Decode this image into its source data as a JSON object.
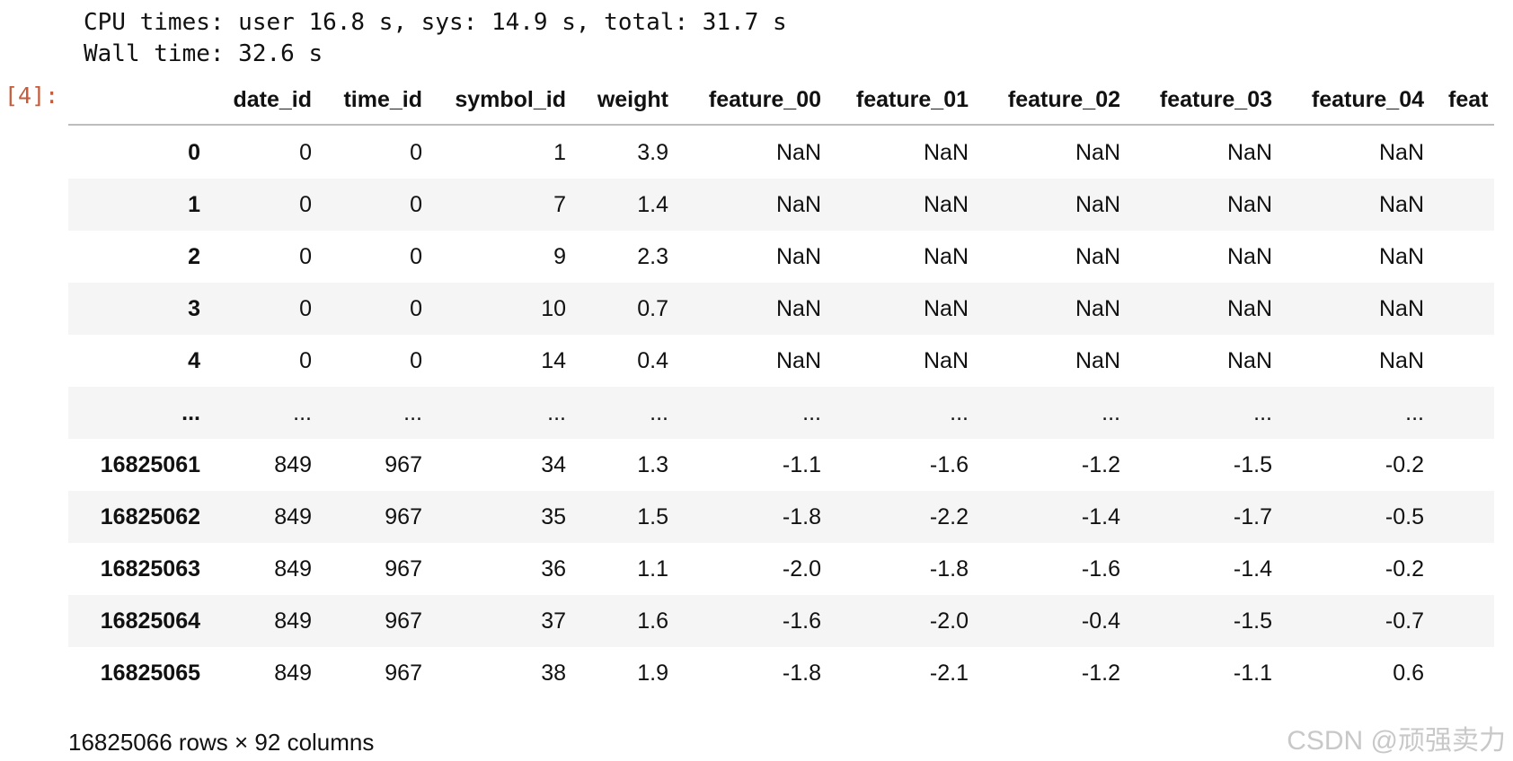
{
  "output_lines": [
    "CPU times: user 16.8 s, sys: 14.9 s, total: 31.7 s",
    "Wall time: 32.6 s"
  ],
  "prompt": "[4]:",
  "table": {
    "columns": [
      "date_id",
      "time_id",
      "symbol_id",
      "weight",
      "feature_00",
      "feature_01",
      "feature_02",
      "feature_03",
      "feature_04",
      "feat"
    ],
    "index": [
      "0",
      "1",
      "2",
      "3",
      "4",
      "...",
      "16825061",
      "16825062",
      "16825063",
      "16825064",
      "16825065"
    ],
    "rows": [
      [
        "0",
        "0",
        "1",
        "3.9",
        "NaN",
        "NaN",
        "NaN",
        "NaN",
        "NaN"
      ],
      [
        "0",
        "0",
        "7",
        "1.4",
        "NaN",
        "NaN",
        "NaN",
        "NaN",
        "NaN"
      ],
      [
        "0",
        "0",
        "9",
        "2.3",
        "NaN",
        "NaN",
        "NaN",
        "NaN",
        "NaN"
      ],
      [
        "0",
        "0",
        "10",
        "0.7",
        "NaN",
        "NaN",
        "NaN",
        "NaN",
        "NaN"
      ],
      [
        "0",
        "0",
        "14",
        "0.4",
        "NaN",
        "NaN",
        "NaN",
        "NaN",
        "NaN"
      ],
      [
        "...",
        "...",
        "...",
        "...",
        "...",
        "...",
        "...",
        "...",
        "..."
      ],
      [
        "849",
        "967",
        "34",
        "1.3",
        "-1.1",
        "-1.6",
        "-1.2",
        "-1.5",
        "-0.2"
      ],
      [
        "849",
        "967",
        "35",
        "1.5",
        "-1.8",
        "-2.2",
        "-1.4",
        "-1.7",
        "-0.5"
      ],
      [
        "849",
        "967",
        "36",
        "1.1",
        "-2.0",
        "-1.8",
        "-1.6",
        "-1.4",
        "-0.2"
      ],
      [
        "849",
        "967",
        "37",
        "1.6",
        "-1.6",
        "-2.0",
        "-0.4",
        "-1.5",
        "-0.7"
      ],
      [
        "849",
        "967",
        "38",
        "1.9",
        "-1.8",
        "-2.1",
        "-1.2",
        "-1.1",
        "0.6"
      ]
    ]
  },
  "footer": "16825066 rows × 92 columns",
  "watermark": "CSDN @顽强卖力"
}
